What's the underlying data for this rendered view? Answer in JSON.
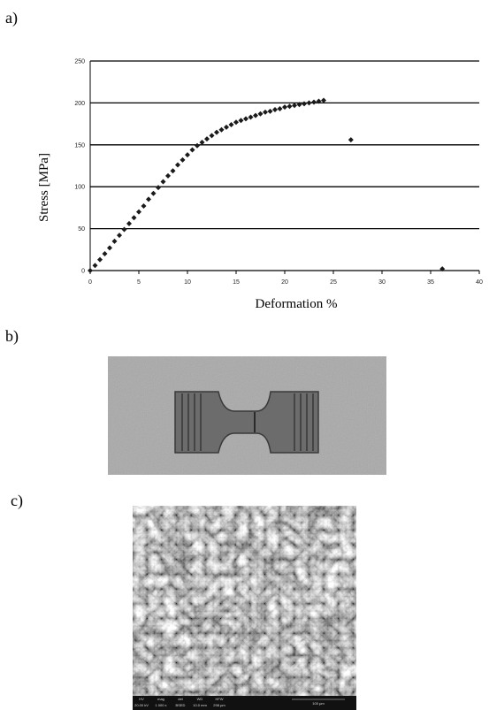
{
  "panels": [
    {
      "label": "a)"
    },
    {
      "label": "b)"
    },
    {
      "label": "c)"
    }
  ],
  "chart_data": {
    "type": "scatter",
    "ylabel": "Stress [MPa]",
    "xlabel": "Deformation %",
    "color": "#1a1a1a",
    "grid": true,
    "xlim": [
      0,
      40
    ],
    "xticks": [
      0,
      5,
      10,
      15,
      20,
      25,
      30,
      35,
      40
    ],
    "ylim": [
      0,
      250
    ],
    "yticks": [
      0,
      50,
      100,
      150,
      200,
      250
    ],
    "x": [
      0,
      0.5,
      1,
      1.5,
      2,
      2.5,
      3,
      3.5,
      4,
      4.5,
      5,
      5.5,
      6,
      6.5,
      7,
      7.5,
      8,
      8.5,
      9,
      9.5,
      10,
      10.5,
      11,
      11.5,
      12,
      12.5,
      13,
      13.5,
      14,
      14.5,
      15,
      15.5,
      16,
      16.5,
      17,
      17.5,
      18,
      18.5,
      19,
      19.5,
      20,
      20.5,
      21,
      21.5,
      22,
      22.5,
      23,
      23.5,
      24,
      26.8,
      36.2
    ],
    "values": [
      0,
      6,
      13,
      20,
      27,
      35,
      42,
      49,
      56,
      63,
      70,
      77,
      85,
      92,
      99,
      106,
      113,
      119,
      126,
      132,
      138,
      144,
      149,
      153,
      157,
      161,
      165,
      168,
      171,
      174,
      177,
      179,
      181,
      183,
      185,
      187,
      189,
      190,
      192,
      193,
      195,
      196,
      197,
      198,
      199,
      200,
      201,
      202,
      203,
      156,
      2
    ]
  },
  "sem_databar": {
    "labels": [
      "HV",
      "mag",
      "det",
      "WD",
      "HFW"
    ],
    "values": [
      "20.00 kV",
      "1 000 x",
      "BSED",
      "10.0 mm",
      "298 µm"
    ],
    "scale": "100 µm"
  }
}
